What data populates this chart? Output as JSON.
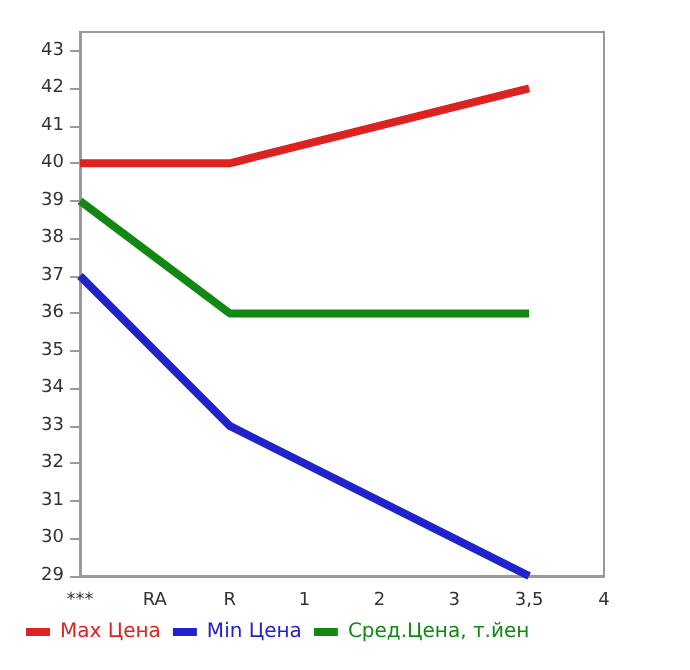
{
  "chart_data": {
    "type": "line",
    "categories": [
      "***",
      "RA",
      "R",
      "1",
      "2",
      "3",
      "3,5",
      "4"
    ],
    "series": [
      {
        "name": "Max Цена",
        "color": "#dd2222",
        "values": [
          40,
          null,
          40,
          null,
          null,
          null,
          42,
          null
        ]
      },
      {
        "name": "Min Цена",
        "color": "#2222cc",
        "values": [
          37,
          null,
          33,
          null,
          null,
          null,
          29,
          null
        ]
      },
      {
        "name": "Сред.Цена, т.йен",
        "color": "#118811",
        "values": [
          39,
          null,
          36,
          null,
          null,
          null,
          36,
          null
        ]
      }
    ],
    "ylim": [
      29,
      43.5
    ],
    "yticks": [
      29,
      30,
      31,
      32,
      33,
      34,
      35,
      36,
      37,
      38,
      39,
      40,
      41,
      42,
      43
    ],
    "grid": false,
    "legend": "bottom",
    "marker": "none",
    "line_style": "solid"
  }
}
